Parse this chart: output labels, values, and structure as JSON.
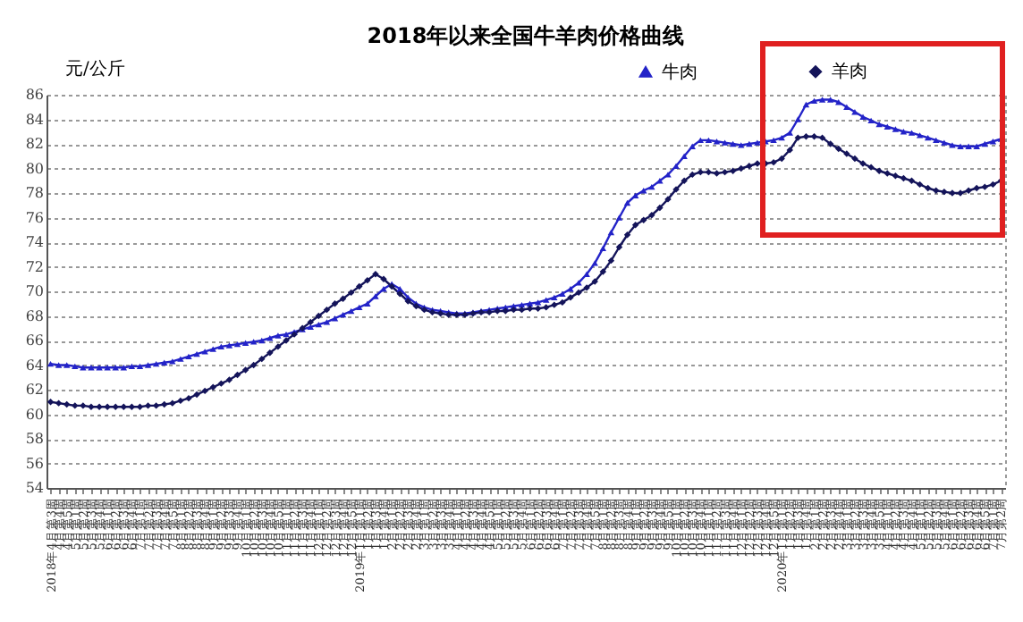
{
  "chart_data": {
    "type": "line",
    "title": "2018年以来全国牛羊肉价格曲线",
    "ylabel": "元/公斤",
    "categories": [
      "2018年4月第3周",
      "4月第4周",
      "4月第5周",
      "5月第1周",
      "5月第2周",
      "5月第3周",
      "5月第4周",
      "6月第1周",
      "6月第2周",
      "6月第3周",
      "6月第4周",
      "7月第1周",
      "7月第2周",
      "7月第3周",
      "7月第4周",
      "7月第5周",
      "8月第1周",
      "8月第2周",
      "8月第3周",
      "8月第4周",
      "9月第1周",
      "9月第2周",
      "9月第3周",
      "9月第4周",
      "10月第1周",
      "10月第2周",
      "10月第3周",
      "10月第4周",
      "10月第5周",
      "11月第1周",
      "11月第2周",
      "11月第3周",
      "11月第4周",
      "12月第1周",
      "12月第2周",
      "12月第3周",
      "12月第4周",
      "12月第5周",
      "2019年1月第1周",
      "1月第2周",
      "1月第3周",
      "1月第4周",
      "2月第1周",
      "2月第2周",
      "2月第3周",
      "2月第4周",
      "3月第1周",
      "3月第2周",
      "3月第3周",
      "3月第4周",
      "4月第1周",
      "4月第2周",
      "4月第3周",
      "4月第4周",
      "4月第5周",
      "5月第1周",
      "5月第2周",
      "5月第3周",
      "5月第4周",
      "6月第1周",
      "6月第2周",
      "6月第3周",
      "6月第4周",
      "7月第1周",
      "7月第2周",
      "7月第3周",
      "7月第4周",
      "7月第5周",
      "8月第1周",
      "8月第2周",
      "8月第3周",
      "8月第4周",
      "9月第1周",
      "9月第2周",
      "9月第3周",
      "9月第4周",
      "9月第5周",
      "10月第1周",
      "10月第2周",
      "10月第3周",
      "10月第4周",
      "11月第1周",
      "11月第2周",
      "11月第3周",
      "11月第4周",
      "12月第1周",
      "12月第2周",
      "12月第3周",
      "12月第4周",
      "12月第5周",
      "2020年1月第1周",
      "1月第2周",
      "1月第3周",
      "1月第4周",
      "2月第1周",
      "2月第2周",
      "2月第3周",
      "2月第4周",
      "3月第1周",
      "3月第2周",
      "3月第3周",
      "3月第4周",
      "3月第5周",
      "4月第1周",
      "4月第2周",
      "4月第3周",
      "4月第4周",
      "5月第1周",
      "5月第2周",
      "5月第3周",
      "5月第4周",
      "6月第1周",
      "6月第2周",
      "6月第3周",
      "6月第4周",
      "6月第5周",
      "7月第1周",
      "7月第2周"
    ],
    "series": [
      {
        "name": "牛肉",
        "color": "#2323c8",
        "marker": "triangle",
        "values": [
          64.1,
          64.0,
          64.0,
          63.9,
          63.8,
          63.8,
          63.8,
          63.8,
          63.8,
          63.8,
          63.9,
          63.9,
          64.0,
          64.1,
          64.2,
          64.3,
          64.5,
          64.7,
          64.9,
          65.1,
          65.3,
          65.5,
          65.6,
          65.7,
          65.8,
          65.9,
          66.0,
          66.2,
          66.4,
          66.5,
          66.7,
          66.9,
          67.1,
          67.3,
          67.5,
          67.8,
          68.1,
          68.4,
          68.7,
          69.0,
          69.6,
          70.2,
          70.6,
          70.2,
          69.5,
          69.0,
          68.7,
          68.5,
          68.4,
          68.3,
          68.2,
          68.2,
          68.3,
          68.4,
          68.5,
          68.6,
          68.7,
          68.8,
          68.9,
          69.0,
          69.1,
          69.3,
          69.5,
          69.8,
          70.2,
          70.7,
          71.4,
          72.3,
          73.5,
          74.8,
          76.0,
          77.2,
          77.8,
          78.2,
          78.5,
          79.0,
          79.5,
          80.2,
          81.0,
          81.8,
          82.3,
          82.3,
          82.2,
          82.1,
          82.0,
          81.9,
          82.0,
          82.1,
          82.2,
          82.3,
          82.5,
          82.9,
          84.0,
          85.2,
          85.5,
          85.6,
          85.6,
          85.4,
          85.0,
          84.6,
          84.2,
          83.9,
          83.6,
          83.4,
          83.2,
          83.0,
          82.9,
          82.7,
          82.5,
          82.3,
          82.1,
          81.9,
          81.8,
          81.8,
          81.8,
          82.0,
          82.2,
          82.4
        ]
      },
      {
        "name": "羊肉",
        "color": "#14145a",
        "marker": "diamond",
        "values": [
          61.0,
          60.9,
          60.8,
          60.7,
          60.7,
          60.6,
          60.6,
          60.6,
          60.6,
          60.6,
          60.6,
          60.6,
          60.7,
          60.7,
          60.8,
          60.9,
          61.1,
          61.3,
          61.6,
          61.9,
          62.2,
          62.5,
          62.8,
          63.2,
          63.6,
          64.0,
          64.5,
          65.0,
          65.5,
          66.0,
          66.5,
          67.0,
          67.5,
          68.0,
          68.5,
          69.0,
          69.4,
          69.9,
          70.4,
          70.9,
          71.4,
          71.0,
          70.4,
          69.8,
          69.2,
          68.8,
          68.5,
          68.3,
          68.2,
          68.1,
          68.1,
          68.1,
          68.2,
          68.3,
          68.3,
          68.4,
          68.4,
          68.5,
          68.5,
          68.6,
          68.6,
          68.7,
          68.9,
          69.1,
          69.5,
          69.9,
          70.3,
          70.8,
          71.6,
          72.5,
          73.6,
          74.6,
          75.4,
          75.8,
          76.2,
          76.8,
          77.5,
          78.3,
          79.0,
          79.5,
          79.7,
          79.7,
          79.6,
          79.7,
          79.8,
          80.0,
          80.2,
          80.4,
          80.4,
          80.5,
          80.8,
          81.5,
          82.5,
          82.6,
          82.6,
          82.5,
          82.0,
          81.6,
          81.2,
          80.8,
          80.4,
          80.1,
          79.8,
          79.6,
          79.4,
          79.2,
          79.0,
          78.7,
          78.4,
          78.2,
          78.1,
          78.0,
          78.0,
          78.2,
          78.4,
          78.5,
          78.7,
          79.0
        ]
      }
    ],
    "ylim": [
      54,
      86
    ],
    "yticks": [
      54,
      56,
      58,
      60,
      62,
      64,
      66,
      68,
      70,
      72,
      74,
      76,
      78,
      80,
      82,
      84,
      86
    ],
    "grid": "y",
    "legend": "top right"
  }
}
